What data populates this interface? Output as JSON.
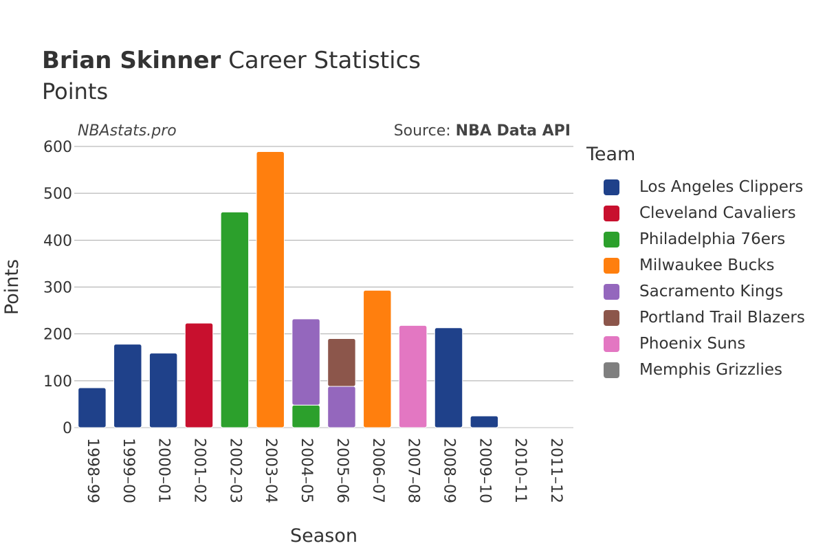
{
  "header": {
    "title_bold": "Brian Skinner",
    "title_rest": "Career Statistics",
    "subtitle": "Points",
    "watermark": "NBAstats.pro",
    "source_prefix": "Source: ",
    "source_name": "NBA Data API"
  },
  "legend": {
    "title": "Team",
    "items": [
      {
        "label": "Los Angeles Clippers",
        "color": "#1f418a"
      },
      {
        "label": "Cleveland Cavaliers",
        "color": "#c8102e"
      },
      {
        "label": "Philadelphia 76ers",
        "color": "#2ca02c"
      },
      {
        "label": "Milwaukee Bucks",
        "color": "#ff7f0e"
      },
      {
        "label": "Sacramento Kings",
        "color": "#9467bd"
      },
      {
        "label": "Portland Trail Blazers",
        "color": "#8c564b"
      },
      {
        "label": "Phoenix Suns",
        "color": "#e377c2"
      },
      {
        "label": "Memphis Grizzlies",
        "color": "#7f7f7f"
      }
    ]
  },
  "chart_data": {
    "type": "bar",
    "stacked": true,
    "title": "Brian Skinner Career Statistics",
    "subtitle": "Points",
    "xlabel": "Season",
    "ylabel": "Points",
    "ylim": [
      0,
      600
    ],
    "yticks": [
      0,
      100,
      200,
      300,
      400,
      500,
      600
    ],
    "grid": true,
    "legend_position": "right",
    "categories": [
      "1998–99",
      "1999–00",
      "2000–01",
      "2001–02",
      "2002–03",
      "2003–04",
      "2004–05",
      "2005–06",
      "2006–07",
      "2007–08",
      "2008–09",
      "2009–10",
      "2010–11",
      "2011–12"
    ],
    "series": [
      {
        "name": "Los Angeles Clippers",
        "color": "#1f418a",
        "values": [
          85,
          178,
          159,
          0,
          0,
          0,
          0,
          0,
          0,
          0,
          213,
          25,
          0,
          0
        ]
      },
      {
        "name": "Cleveland Cavaliers",
        "color": "#c8102e",
        "values": [
          0,
          0,
          0,
          223,
          0,
          0,
          0,
          0,
          0,
          0,
          0,
          0,
          0,
          0
        ]
      },
      {
        "name": "Philadelphia 76ers",
        "color": "#2ca02c",
        "values": [
          0,
          0,
          0,
          0,
          460,
          0,
          48,
          0,
          0,
          0,
          0,
          0,
          0,
          0
        ]
      },
      {
        "name": "Milwaukee Bucks",
        "color": "#ff7f0e",
        "values": [
          0,
          0,
          0,
          0,
          0,
          589,
          0,
          0,
          293,
          0,
          0,
          0,
          0,
          0
        ]
      },
      {
        "name": "Sacramento Kings",
        "color": "#9467bd",
        "values": [
          0,
          0,
          0,
          0,
          0,
          0,
          184,
          88,
          0,
          0,
          0,
          0,
          0,
          0
        ]
      },
      {
        "name": "Portland Trail Blazers",
        "color": "#8c564b",
        "values": [
          0,
          0,
          0,
          0,
          0,
          0,
          0,
          102,
          0,
          0,
          0,
          0,
          0,
          0
        ]
      },
      {
        "name": "Phoenix Suns",
        "color": "#e377c2",
        "values": [
          0,
          0,
          0,
          0,
          0,
          0,
          0,
          0,
          0,
          218,
          0,
          0,
          0,
          0
        ]
      },
      {
        "name": "Memphis Grizzlies",
        "color": "#7f7f7f",
        "values": [
          0,
          0,
          0,
          0,
          0,
          0,
          0,
          0,
          0,
          0,
          0,
          0,
          0,
          0
        ]
      }
    ]
  }
}
